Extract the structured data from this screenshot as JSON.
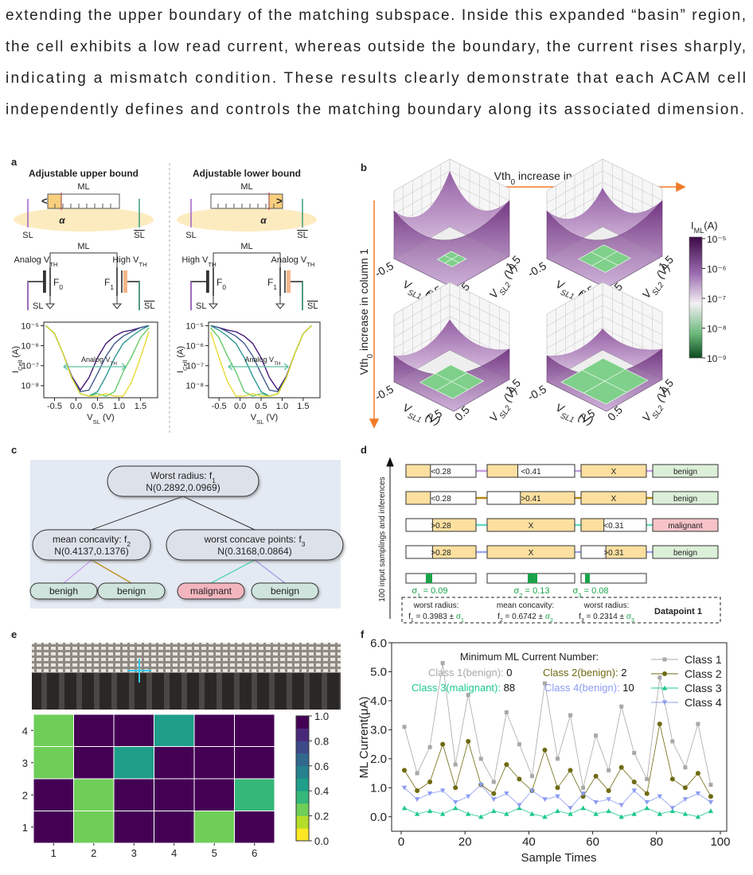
{
  "paragraph": [
    "extending the upper boundary of the matching subspace. Inside this expanded “basin” region,",
    "the cell exhibits a low read current, whereas outside the boundary, the current rises sharply,",
    "indicating a mismatch condition.  These results clearly demonstrate that each ACAM cell",
    "independently defines and controls the matching boundary along its associated dimension."
  ],
  "panel_labels": {
    "a": "a",
    "b": "b",
    "c": "c",
    "d": "d",
    "e": "e",
    "f": "f"
  },
  "panel_a": {
    "upper": {
      "title": "Adjustable upper bound",
      "ml": "ML",
      "bracket": "<",
      "alpha": "α",
      "sl_left": "SL",
      "sl_right": "SL",
      "ml2": "ML",
      "vth_left": [
        "Analog V",
        "TH"
      ],
      "vth_right": [
        "High V",
        "TH"
      ],
      "f_left": [
        "F",
        "0"
      ],
      "f_right": [
        "F",
        "1"
      ],
      "sl3": "SL",
      "sl4": "SL"
    },
    "lower": {
      "title": "Adjustable lower bound",
      "ml": "ML",
      "bracket": ">",
      "alpha": "α",
      "sl_left": "SL",
      "sl_right": "SL",
      "ml2": "ML",
      "vth_left": [
        "High V",
        "TH"
      ],
      "vth_right": [
        "Analog V",
        "TH"
      ],
      "f_left": [
        "F",
        "0"
      ],
      "f_right": [
        "F",
        "1"
      ],
      "sl3": "SL",
      "sl4": "SL"
    }
  },
  "panel_b": {
    "top": [
      "Vth",
      "0",
      " increase in column 2"
    ],
    "side": [
      "Vth",
      "0",
      " increase in column 1"
    ],
    "colorbar_label": [
      "I",
      "ML",
      "(A)"
    ],
    "colorbar_ticks": [
      "10⁻⁵",
      "10⁻⁶",
      "10⁻⁷",
      "10⁻⁸",
      "10⁻⁹"
    ],
    "surfaces": [
      {
        "x_ticks": [
          "-0.5",
          "1.5"
        ],
        "y_ticks": [
          "0.5",
          "1.5"
        ],
        "xlabel": [
          "V",
          "SL1",
          " (V)"
        ],
        "ylabel": [
          "V",
          "SL2",
          " (V)"
        ]
      },
      {
        "x_ticks": [
          "-0.5",
          "1.5"
        ],
        "y_ticks": [
          "0.5",
          "1.5"
        ],
        "xlabel": [
          "V",
          "SL1",
          " (V)"
        ],
        "ylabel": [
          "V",
          "SL2",
          " (V)"
        ]
      },
      {
        "x_ticks": [
          "-0.5",
          "1.5"
        ],
        "y_ticks": [
          "0.5",
          "1.5"
        ],
        "xlabel": [
          "V",
          "SL1",
          " (V)"
        ],
        "ylabel": [
          "V",
          "SL2",
          " (V)"
        ]
      },
      {
        "x_ticks": [
          "-0.5",
          "1.5"
        ],
        "y_ticks": [
          "0.5",
          "1.5"
        ],
        "xlabel": [
          "V",
          "SL1",
          " (V)"
        ],
        "ylabel": [
          "V",
          "SL2",
          " (V)"
        ]
      }
    ]
  },
  "panel_c": {
    "root": {
      "label": [
        "Worst radius: f",
        "1"
      ],
      "dist": "N(0.2892,0.0969)"
    },
    "left": {
      "label": [
        "mean concavity: f",
        "2"
      ],
      "dist": "N(0.4137,0.1376)"
    },
    "right": {
      "label": [
        "worst concave points: f",
        "3"
      ],
      "dist": "N(0.3168,0.0864)"
    },
    "leaves": [
      "benigh",
      "benign",
      "malignant",
      "benign"
    ]
  },
  "panel_d": {
    "axis_label": "100 input samplings and inferences",
    "rows": [
      [
        "<0.28",
        "<0.41",
        "X",
        "benign"
      ],
      [
        "<0.28",
        ">0.41",
        "X",
        "benign"
      ],
      [
        ">0.28",
        "X",
        "<0.31",
        "malignant"
      ],
      [
        ">0.28",
        "X",
        ">0.31",
        "benign"
      ]
    ],
    "sigmas": [
      [
        "σ",
        "1",
        " = 0.09"
      ],
      [
        "σ",
        "2",
        " = 0.13"
      ],
      [
        "σ",
        "3",
        " = 0.08"
      ]
    ],
    "features": [
      {
        "name": "worst radius:",
        "value": [
          "f",
          "1",
          " = 0.3983 ± "
        ],
        "sigma": [
          "σ",
          "1"
        ]
      },
      {
        "name": "mean concavity:",
        "value": [
          "f",
          "2",
          " = 0.6742 ± "
        ],
        "sigma": [
          "σ",
          "2"
        ]
      },
      {
        "name": "worst radius:",
        "value": [
          "f",
          "3",
          " = 0.2314 ± "
        ],
        "sigma": [
          "σ",
          "3"
        ]
      }
    ],
    "datapoint": "Datapoint 1"
  },
  "chart_data": [
    {
      "type": "line",
      "xlabel": [
        "V",
        "SL",
        " (V)"
      ],
      "ylabel": [
        "I",
        "Cell",
        " (A)"
      ],
      "annotation": [
        "Analog V",
        "TH"
      ],
      "log_y": true,
      "xlim": [
        -0.75,
        1.9
      ],
      "xticks": [
        -0.5,
        {
          "value": 0,
          "label": "0.0"
        },
        0.5,
        {
          "value": 1,
          "label": "1.0"
        },
        1.5
      ],
      "ylim": [
        2.5e-09,
        1.5e-05
      ],
      "yticks": [
        {
          "value": 1e-05,
          "label": "10⁻⁵"
        },
        {
          "value": 1e-06,
          "label": "10⁻⁶"
        },
        {
          "value": 1e-07,
          "label": "10⁻⁷"
        },
        {
          "value": 1e-08,
          "label": "10⁻⁸"
        }
      ],
      "x": [
        -0.7,
        -0.5,
        -0.3,
        -0.1,
        0.1,
        0.3,
        0.5,
        0.7,
        0.9,
        1.1,
        1.3,
        1.5,
        1.7
      ],
      "series": [
        {
          "color": "#3b0f70",
          "values": [
            1e-05,
            4e-06,
            4e-07,
            3e-08,
            6e-09,
            2.5e-08,
            2.5e-07,
            1.3e-06,
            3e-06,
            5e-06,
            6e-06,
            8e-06,
            1e-05
          ]
        },
        {
          "color": "#3b528b",
          "values": [
            1e-05,
            4e-06,
            4e-07,
            2.5e-08,
            5e-09,
            6e-09,
            4e-08,
            3e-07,
            1.3e-06,
            3e-06,
            5e-06,
            8e-06,
            1e-05
          ]
        },
        {
          "color": "#21918c",
          "values": [
            1e-05,
            4e-06,
            4e-07,
            2.5e-08,
            4e-09,
            3e-09,
            5e-09,
            3e-08,
            2.5e-07,
            1.3e-06,
            3e-06,
            6e-06,
            1e-05
          ]
        },
        {
          "color": "#5ec962",
          "values": [
            1e-05,
            4e-06,
            4e-07,
            2.5e-08,
            4e-09,
            3e-09,
            4e-09,
            3e-09,
            5e-09,
            5e-08,
            3e-07,
            2.5e-06,
            8e-06
          ]
        },
        {
          "color": "#e6d92a",
          "values": [
            1e-05,
            4e-06,
            4e-07,
            2.5e-08,
            4e-09,
            3e-09,
            3e-09,
            4e-09,
            3e-09,
            3e-09,
            1.6e-08,
            2.5e-07,
            5e-06
          ]
        }
      ]
    },
    {
      "type": "line",
      "xlabel": [
        "V",
        "SL",
        " (V)"
      ],
      "ylabel": [
        "I",
        "Cell",
        " (A)"
      ],
      "annotation": [
        "Analog V",
        "TH"
      ],
      "log_y": true,
      "xlim": [
        -0.75,
        1.9
      ],
      "xticks": [
        -0.5,
        {
          "value": 0,
          "label": "0.0"
        },
        0.5,
        {
          "value": 1,
          "label": "1.0"
        },
        1.5
      ],
      "ylim": [
        2.5e-09,
        1.5e-05
      ],
      "yticks": [
        {
          "value": 1e-05,
          "label": "10⁻⁵"
        },
        {
          "value": 1e-06,
          "label": "10⁻⁶"
        },
        {
          "value": 1e-07,
          "label": "10⁻⁷"
        },
        {
          "value": 1e-08,
          "label": "10⁻⁸"
        }
      ],
      "x": [
        -0.7,
        -0.5,
        -0.3,
        -0.1,
        0.1,
        0.3,
        0.5,
        0.7,
        0.9,
        1.1,
        1.3,
        1.5,
        1.7
      ],
      "series": [
        {
          "color": "#3b0f70",
          "values": [
            1e-05,
            8e-06,
            6e-06,
            5e-06,
            3e-06,
            1.3e-06,
            2.5e-07,
            2.5e-08,
            6e-09,
            3e-08,
            4e-07,
            4e-06,
            1e-05
          ]
        },
        {
          "color": "#3b528b",
          "values": [
            1e-05,
            8e-06,
            5e-06,
            3e-06,
            1.3e-06,
            3e-07,
            4e-08,
            6e-09,
            5e-09,
            2.5e-08,
            4e-07,
            4e-06,
            1e-05
          ]
        },
        {
          "color": "#21918c",
          "values": [
            1e-05,
            6e-06,
            3e-06,
            1.3e-06,
            2.5e-07,
            3e-08,
            5e-09,
            3e-09,
            4e-09,
            2.5e-08,
            4e-07,
            4e-06,
            1e-05
          ]
        },
        {
          "color": "#5ec962",
          "values": [
            8e-06,
            2.5e-06,
            3e-07,
            5e-08,
            5e-09,
            3e-09,
            4e-09,
            3e-09,
            4e-09,
            2.5e-08,
            4e-07,
            4e-06,
            1e-05
          ]
        },
        {
          "color": "#e6d92a",
          "values": [
            5e-06,
            2.5e-07,
            1.6e-08,
            3e-09,
            3e-09,
            4e-09,
            3e-09,
            3e-09,
            4e-09,
            2.5e-08,
            4e-07,
            4e-06,
            1e-05
          ]
        }
      ]
    },
    {
      "type": "heatmap",
      "xticks": [
        1,
        2,
        3,
        4,
        5,
        6
      ],
      "yticks": [
        1,
        2,
        3,
        4
      ],
      "values": [
        [
          1,
          0.3,
          1,
          1,
          0.3,
          1
        ],
        [
          1,
          0.3,
          1,
          1,
          1,
          0.4
        ],
        [
          0.3,
          1,
          0.5,
          1,
          1,
          1
        ],
        [
          0.3,
          1,
          1,
          0.5,
          1,
          1
        ]
      ],
      "clim": [
        0,
        1
      ],
      "colorscale": [
        "#fde725",
        "#b5de2b",
        "#6ece58",
        "#35b779",
        "#1f9e89",
        "#26828e",
        "#31688e",
        "#3e4989",
        "#482878",
        "#440154"
      ],
      "colorbar_ticks": [
        {
          "value": 0,
          "label": "0.0"
        },
        0.2,
        0.4,
        0.6,
        0.8,
        {
          "value": 1,
          "label": "1.0"
        }
      ]
    },
    {
      "type": "line",
      "xlabel": "Sample Times",
      "ylabel": "ML Current(μA)",
      "xlim": [
        -3,
        102
      ],
      "xticks": [
        0,
        20,
        40,
        60,
        80,
        100
      ],
      "ylim": [
        -0.5,
        6.0
      ],
      "yticks": [
        {
          "value": 0,
          "label": "0.0"
        },
        {
          "value": 1,
          "label": "1.0"
        },
        {
          "value": 2,
          "label": "2.0"
        },
        {
          "value": 3,
          "label": "3.0"
        },
        {
          "value": 4,
          "label": "4.0"
        },
        {
          "value": 5,
          "label": "5.0"
        },
        {
          "value": 6,
          "label": "6.0"
        }
      ],
      "annotation_title": "Minimum ML Current Number:",
      "annotations": [
        [
          "Class 1(benign): ",
          "0"
        ],
        [
          "Class 2(benign): ",
          "2"
        ],
        [
          "Class 3(malignant): ",
          "88"
        ],
        [
          "Class 4(benign): ",
          "10"
        ]
      ],
      "legend": true,
      "legend_position": "upper right",
      "x": [
        1,
        5,
        9,
        13,
        17,
        21,
        25,
        29,
        33,
        37,
        41,
        45,
        49,
        53,
        57,
        61,
        65,
        69,
        73,
        77,
        81,
        85,
        89,
        93,
        97
      ],
      "series": [
        {
          "name": "Class 1",
          "color": "#a8a8a8",
          "marker": "square",
          "values": [
            3.1,
            1.5,
            2.4,
            5.3,
            1.8,
            4.2,
            2.0,
            1.2,
            3.6,
            2.5,
            1.4,
            4.6,
            2.0,
            3.5,
            1.0,
            2.8,
            1.6,
            3.8,
            2.2,
            1.3,
            4.8,
            2.6,
            1.7,
            3.2,
            1.1
          ]
        },
        {
          "name": "Class 2",
          "color": "#6e6a12",
          "marker": "circle",
          "values": [
            1.6,
            0.9,
            1.2,
            2.5,
            1.0,
            2.6,
            1.1,
            0.8,
            1.8,
            1.3,
            0.9,
            2.3,
            1.0,
            1.6,
            0.7,
            1.4,
            0.9,
            1.7,
            1.2,
            0.8,
            3.2,
            1.3,
            1.0,
            1.5,
            0.7
          ]
        },
        {
          "name": "Class 3",
          "color": "#1ec98e",
          "marker": "triangle-up",
          "values": [
            0.3,
            0.1,
            0.2,
            0.1,
            0.3,
            0.1,
            0.0,
            0.2,
            0.1,
            0.3,
            0.1,
            0.0,
            0.2,
            0.1,
            0.3,
            0.1,
            0.2,
            0.0,
            0.1,
            0.3,
            0.1,
            0.2,
            0.1,
            0.0,
            0.2
          ]
        },
        {
          "name": "Class 4",
          "color": "#8b9cf2",
          "marker": "triangle-down",
          "values": [
            1.0,
            0.6,
            0.8,
            0.9,
            0.5,
            0.7,
            1.1,
            0.6,
            0.8,
            0.4,
            0.9,
            0.6,
            0.7,
            0.3,
            0.8,
            0.5,
            0.6,
            0.4,
            0.9,
            0.5,
            0.7,
            0.3,
            0.6,
            0.8,
            0.5
          ]
        }
      ]
    }
  ]
}
